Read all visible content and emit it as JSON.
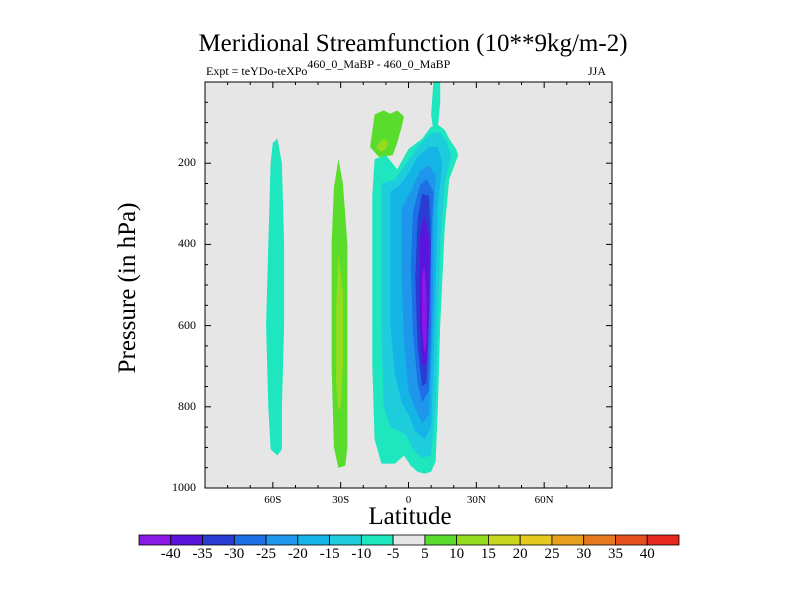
{
  "chart_data": {
    "type": "contour",
    "title": "Meridional Streamfunction (10**9kg/m-2)",
    "subtitle_left_prefix": "Expt = teYDo-teXPo",
    "subtitle_left_superscript": "460_0_MaBP - 460_0_MaBP",
    "subtitle_right": "JJA",
    "xlabel": "Latitude",
    "ylabel": "Pressure (in hPa)",
    "xlim": [
      -90,
      90
    ],
    "ylim": [
      1000,
      0
    ],
    "x_ticks": [
      {
        "value": -60,
        "label": "60S"
      },
      {
        "value": -30,
        "label": "30S"
      },
      {
        "value": 0,
        "label": "0"
      },
      {
        "value": 30,
        "label": "30N"
      },
      {
        "value": 60,
        "label": "60N"
      }
    ],
    "y_ticks": [
      {
        "value": 200,
        "label": "200"
      },
      {
        "value": 400,
        "label": "400"
      },
      {
        "value": 600,
        "label": "600"
      },
      {
        "value": 800,
        "label": "800"
      },
      {
        "value": 1000,
        "label": "1000"
      }
    ],
    "colorbar": {
      "levels": [
        -40,
        -35,
        -30,
        -25,
        -20,
        -15,
        -10,
        -5,
        5,
        10,
        15,
        20,
        25,
        30,
        35,
        40
      ],
      "colors": [
        "#8a19e6",
        "#5a14dc",
        "#2a3cd2",
        "#1e6ee6",
        "#1e96eb",
        "#14b4e6",
        "#1ecddc",
        "#1ee6be",
        "#e6e6e6",
        "#5adc2d",
        "#96dc1e",
        "#c8d61e",
        "#e6c81e",
        "#e6a01e",
        "#e6781e",
        "#e6501e",
        "#e6281e"
      ]
    },
    "regions": [
      {
        "name": "cell-60S-outer",
        "level_index": 7,
        "points": [
          [
            -58,
            140
          ],
          [
            -56,
            200
          ],
          [
            -55,
            400
          ],
          [
            -55,
            600
          ],
          [
            -56,
            800
          ],
          [
            -56,
            905
          ],
          [
            -58,
            920
          ],
          [
            -61,
            905
          ],
          [
            -62,
            800
          ],
          [
            -63,
            600
          ],
          [
            -62,
            400
          ],
          [
            -61,
            200
          ],
          [
            -60,
            150
          ]
        ]
      },
      {
        "name": "cell-30S-outer",
        "level_index": 9,
        "points": [
          [
            -31,
            190
          ],
          [
            -29,
            250
          ],
          [
            -27,
            400
          ],
          [
            -27,
            700
          ],
          [
            -27,
            900
          ],
          [
            -28,
            945
          ],
          [
            -31,
            950
          ],
          [
            -33,
            900
          ],
          [
            -34,
            700
          ],
          [
            -34,
            400
          ],
          [
            -33,
            260
          ]
        ]
      },
      {
        "name": "cell-30S-inner",
        "level_index": 10,
        "points": [
          [
            -31,
            420
          ],
          [
            -29,
            520
          ],
          [
            -29,
            700
          ],
          [
            -30,
            800
          ],
          [
            -31,
            810
          ],
          [
            -32,
            740
          ],
          [
            -32,
            560
          ]
        ]
      },
      {
        "name": "cell-upper-outer",
        "level_index": 9,
        "points": [
          [
            -15,
            80
          ],
          [
            -11,
            70
          ],
          [
            -8,
            78
          ],
          [
            -5,
            70
          ],
          [
            -2,
            85
          ],
          [
            -3,
            110
          ],
          [
            -5,
            150
          ],
          [
            -7,
            180
          ],
          [
            -13,
            185
          ],
          [
            -17,
            160
          ]
        ]
      },
      {
        "name": "cell-upper-inner",
        "level_index": 10,
        "points": [
          [
            -13,
            150
          ],
          [
            -11,
            140
          ],
          [
            -9,
            148
          ],
          [
            -10,
            165
          ],
          [
            -12,
            172
          ],
          [
            -14,
            163
          ]
        ]
      },
      {
        "name": "cell-equatorial",
        "level_index": 7,
        "points": [
          [
            -15,
            190
          ],
          [
            -10,
            180
          ],
          [
            -5,
            215
          ],
          [
            0,
            165
          ],
          [
            6,
            140
          ],
          [
            10,
            110
          ],
          [
            13,
            105
          ],
          [
            16,
            118
          ],
          [
            18,
            140
          ],
          [
            21,
            165
          ],
          [
            22,
            180
          ],
          [
            18,
            240
          ],
          [
            16,
            360
          ],
          [
            14,
            600
          ],
          [
            13,
            800
          ],
          [
            12,
            935
          ],
          [
            10,
            960
          ],
          [
            7,
            965
          ],
          [
            4,
            960
          ],
          [
            1,
            945
          ],
          [
            -2,
            920
          ],
          [
            -6,
            940
          ],
          [
            -12,
            940
          ],
          [
            -15,
            880
          ],
          [
            -16,
            700
          ],
          [
            -16,
            450
          ],
          [
            -16,
            280
          ]
        ]
      },
      {
        "name": "cell-equatorial-level-10",
        "level_index": 6,
        "points": [
          [
            -12,
            250
          ],
          [
            -6,
            240
          ],
          [
            -1,
            200
          ],
          [
            4,
            160
          ],
          [
            10,
            125
          ],
          [
            14,
            124
          ],
          [
            17,
            150
          ],
          [
            19,
            180
          ],
          [
            16,
            250
          ],
          [
            14,
            400
          ],
          [
            13,
            600
          ],
          [
            12,
            800
          ],
          [
            10,
            920
          ],
          [
            6,
            925
          ],
          [
            2,
            905
          ],
          [
            -1,
            870
          ],
          [
            -4,
            860
          ],
          [
            -8,
            850
          ],
          [
            -11,
            800
          ],
          [
            -12,
            600
          ],
          [
            -12,
            400
          ]
        ]
      },
      {
        "name": "cell-equatorial-level-15",
        "level_index": 5,
        "points": [
          [
            -8,
            270
          ],
          [
            -4,
            255
          ],
          [
            0,
            225
          ],
          [
            4,
            185
          ],
          [
            9,
            160
          ],
          [
            13,
            160
          ],
          [
            15,
            200
          ],
          [
            13,
            300
          ],
          [
            12,
            500
          ],
          [
            11,
            700
          ],
          [
            10,
            850
          ],
          [
            7,
            880
          ],
          [
            3,
            860
          ],
          [
            0,
            820
          ],
          [
            -3,
            790
          ],
          [
            -6,
            720
          ],
          [
            -8,
            600
          ],
          [
            -8,
            400
          ]
        ]
      },
      {
        "name": "cell-equatorial-level-20",
        "level_index": 4,
        "points": [
          [
            -3,
            310
          ],
          [
            1,
            270
          ],
          [
            5,
            220
          ],
          [
            9,
            205
          ],
          [
            12,
            230
          ],
          [
            11,
            350
          ],
          [
            11,
            500
          ],
          [
            10,
            700
          ],
          [
            9,
            820
          ],
          [
            6,
            840
          ],
          [
            3,
            805
          ],
          [
            0,
            760
          ],
          [
            -2,
            640
          ],
          [
            -3,
            480
          ]
        ]
      },
      {
        "name": "cell-equatorial-level-25",
        "level_index": 3,
        "points": [
          [
            2,
            320
          ],
          [
            5,
            255
          ],
          [
            8,
            240
          ],
          [
            11,
            270
          ],
          [
            10,
            400
          ],
          [
            10,
            600
          ],
          [
            9,
            760
          ],
          [
            6,
            790
          ],
          [
            4,
            740
          ],
          [
            2,
            620
          ],
          [
            1,
            450
          ]
        ]
      },
      {
        "name": "cell-equatorial-level-30",
        "level_index": 2,
        "points": [
          [
            4,
            340
          ],
          [
            6,
            275
          ],
          [
            9,
            280
          ],
          [
            10,
            400
          ],
          [
            9,
            600
          ],
          [
            8,
            740
          ],
          [
            6,
            750
          ],
          [
            4,
            650
          ],
          [
            3,
            480
          ]
        ]
      },
      {
        "name": "cell-equatorial-level-35",
        "level_index": 1,
        "points": [
          [
            5,
            380
          ],
          [
            7,
            330
          ],
          [
            9,
            380
          ],
          [
            9,
            560
          ],
          [
            8,
            690
          ],
          [
            6,
            700
          ],
          [
            5,
            600
          ]
        ]
      },
      {
        "name": "cell-equatorial-level-40",
        "level_index": 0,
        "points": [
          [
            6,
            480
          ],
          [
            7,
            450
          ],
          [
            8,
            520
          ],
          [
            8,
            640
          ],
          [
            7,
            670
          ],
          [
            6,
            600
          ]
        ]
      },
      {
        "name": "cell-plume-top",
        "level_index": 7,
        "points": [
          [
            11,
            0
          ],
          [
            14,
            0
          ],
          [
            14,
            50
          ],
          [
            13,
            110
          ],
          [
            11,
            120
          ],
          [
            10,
            80
          ]
        ]
      }
    ]
  }
}
